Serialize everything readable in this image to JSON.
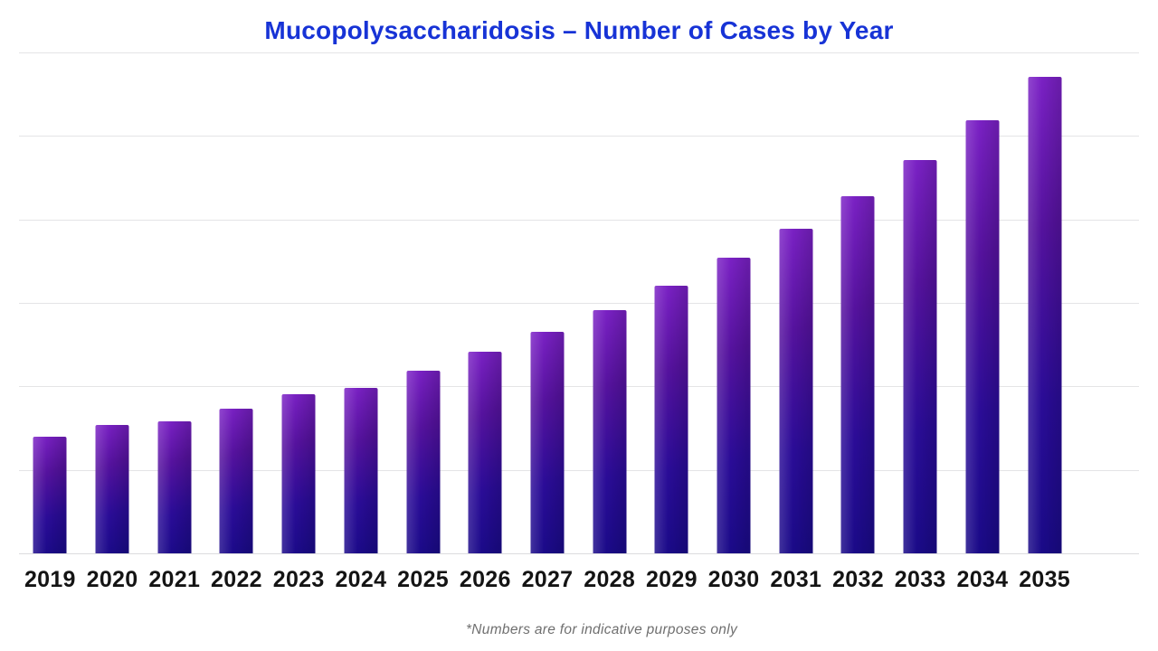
{
  "title": {
    "text": "Mucopolysaccharidosis – Number of Cases by Year",
    "color": "#1733d6"
  },
  "footnote": {
    "text": "*Numbers are for indicative purposes only",
    "color": "#6f6f6f"
  },
  "chart_data": {
    "type": "bar",
    "title": "Mucopolysaccharidosis – Number of Cases by Year",
    "categories": [
      "2019",
      "2020",
      "2021",
      "2022",
      "2023",
      "2024",
      "2025",
      "2026",
      "2027",
      "2028",
      "2029",
      "2030",
      "2031",
      "2032",
      "2033",
      "2034",
      "2035"
    ],
    "values": [
      1.4,
      1.54,
      1.58,
      1.73,
      1.91,
      1.98,
      2.19,
      2.41,
      2.65,
      2.91,
      3.21,
      3.54,
      3.89,
      4.28,
      4.71,
      5.19,
      5.71
    ],
    "values_unit": "relative gridline units (no y-axis tick labels shown in chart)",
    "xlabel": "",
    "ylabel": "",
    "ylim": [
      0,
      6
    ],
    "grid": {
      "horizontal_lines": 7,
      "color": "#e4e4e6"
    },
    "legend": "none",
    "bar_colors": {
      "gradient_top": "#7c22c6",
      "gradient_mid": "#55129e",
      "gradient_bottom": "#190a87"
    }
  }
}
